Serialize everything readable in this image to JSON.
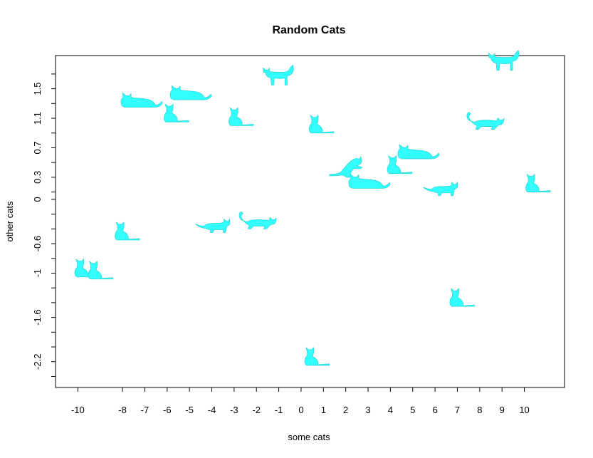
{
  "chart_data": {
    "type": "scatter",
    "title": "Random Cats",
    "xlabel": "some cats",
    "ylabel": "other cats",
    "xlim": [
      -11,
      11.8
    ],
    "ylim": [
      -2.55,
      1.95
    ],
    "x_ticks": [
      -10,
      -8,
      -7,
      -6,
      -5,
      -4,
      -3,
      -2,
      -1,
      0,
      1,
      2,
      3,
      4,
      5,
      6,
      7,
      8,
      9,
      10
    ],
    "x_tick_labels": [
      "-10",
      "-8",
      "-7",
      "-6",
      "-5",
      "-4",
      "-3",
      "-2",
      "-1",
      "0",
      "1",
      "2",
      "3",
      "4",
      "5",
      "6",
      "7",
      "8",
      "9",
      "10"
    ],
    "y_ticks": [
      -2.4,
      -2.2,
      -2,
      -1.8,
      -1.6,
      -1.4,
      -1.2,
      -1,
      -0.8,
      -0.6,
      -0.4,
      -0.2,
      0,
      0.1,
      0.3,
      0.5,
      0.7,
      0.9,
      1.1,
      1.3,
      1.5,
      1.7
    ],
    "y_tick_labels": [
      {
        "value": -2.2,
        "label": "-2.2"
      },
      {
        "value": -1.6,
        "label": "-1.6"
      },
      {
        "value": -1,
        "label": "-1"
      },
      {
        "value": -0.6,
        "label": "-0.6"
      },
      {
        "value": 0,
        "label": "0"
      },
      {
        "value": 0.3,
        "label": "0.3"
      },
      {
        "value": 0.7,
        "label": "0.7"
      },
      {
        "value": 1.1,
        "label": "1.1"
      },
      {
        "value": 1.5,
        "label": "1.5"
      }
    ],
    "grid": false,
    "marker": "cat-silhouette",
    "marker_color": "#33ffff",
    "points": [
      {
        "x": -9.8,
        "y": -1.05,
        "pose": "sitting"
      },
      {
        "x": -9.2,
        "y": -1.08,
        "pose": "sitting"
      },
      {
        "x": -8.0,
        "y": -0.55,
        "pose": "sitting"
      },
      {
        "x": -7.2,
        "y": 1.25,
        "pose": "lying"
      },
      {
        "x": -5.8,
        "y": 1.05,
        "pose": "sitting"
      },
      {
        "x": -5.0,
        "y": 1.35,
        "pose": "lying"
      },
      {
        "x": -3.9,
        "y": -0.45,
        "pose": "walking"
      },
      {
        "x": -2.9,
        "y": 1.0,
        "pose": "sitting"
      },
      {
        "x": -2.0,
        "y": -0.4,
        "pose": "stalking"
      },
      {
        "x": -1.2,
        "y": 1.55,
        "pose": "standing"
      },
      {
        "x": 0.5,
        "y": -2.25,
        "pose": "sitting"
      },
      {
        "x": 0.7,
        "y": 0.9,
        "pose": "sitting"
      },
      {
        "x": 2.1,
        "y": 0.3,
        "pose": "playing"
      },
      {
        "x": 3.0,
        "y": 0.15,
        "pose": "lying"
      },
      {
        "x": 4.2,
        "y": 0.35,
        "pose": "sitting"
      },
      {
        "x": 5.2,
        "y": 0.55,
        "pose": "lying"
      },
      {
        "x": 6.3,
        "y": 0.05,
        "pose": "walking"
      },
      {
        "x": 7.0,
        "y": -1.45,
        "pose": "sitting"
      },
      {
        "x": 8.2,
        "y": 0.95,
        "pose": "stalking"
      },
      {
        "x": 8.9,
        "y": 1.75,
        "pose": "standing"
      },
      {
        "x": 10.4,
        "y": 0.1,
        "pose": "sitting"
      }
    ]
  }
}
